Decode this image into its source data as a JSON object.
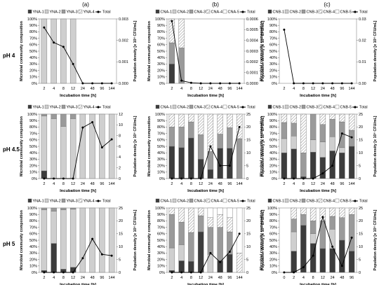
{
  "col_labels": [
    "(a)",
    "(b)",
    "(c)"
  ],
  "row_labels": [
    "pH 4",
    "pH 4.5",
    "pH 5"
  ],
  "palette": {
    "dark": "#3c3c3c",
    "mid": "#9a9a9a",
    "light": "#cfcfcf",
    "white": "#ffffff",
    "hatch": "#b8b8b8",
    "line": "#000000"
  },
  "chart_data": [
    {
      "type": "bar",
      "panel": "a-pH4",
      "categories": [
        "2",
        "4",
        "8",
        "12",
        "24",
        "48",
        "96",
        "144"
      ],
      "legend": [
        "YNA-1",
        "YNA-2",
        "YNA-3",
        "YNA-4",
        "Total"
      ],
      "series": [
        {
          "name": "YNA-1",
          "values": [
            0,
            0,
            0,
            0,
            0,
            0,
            0,
            0
          ]
        },
        {
          "name": "YNA-2",
          "values": [
            100,
            100,
            100,
            100,
            0,
            0,
            0,
            0
          ]
        },
        {
          "name": "YNA-3",
          "values": [
            0,
            0,
            0,
            0,
            0,
            0,
            0,
            0
          ]
        },
        {
          "name": "YNA-4",
          "values": [
            0,
            0,
            0,
            0,
            0,
            0,
            0,
            0
          ]
        }
      ],
      "total": [
        0.0026,
        0.0019,
        0.0017,
        0.0009,
        0,
        0,
        0,
        0
      ],
      "xlabel": "Incubation time [h]",
      "ylabel": "Microbial community composition",
      "y2label": "Population density [x 10⁶ CFU/mL]",
      "yticks": [
        "0%",
        "10%",
        "20%",
        "30%",
        "40%",
        "50%",
        "60%",
        "70%",
        "80%",
        "90%",
        "100%"
      ],
      "y2ticks": [
        "0.000",
        "0.001",
        "0.002",
        "0.003"
      ],
      "y2lim": [
        0,
        0.003
      ]
    },
    {
      "type": "bar",
      "panel": "b-pH4",
      "categories": [
        "2",
        "4",
        "8",
        "12",
        "24",
        "48",
        "96",
        "144"
      ],
      "legend": [
        "CNA-1",
        "CNA-2",
        "CNA-3",
        "CNA-4",
        "CNA-5",
        "Total"
      ],
      "series": [
        {
          "name": "CNA-1",
          "values": [
            30,
            0,
            0,
            0,
            0,
            0,
            0,
            0
          ]
        },
        {
          "name": "CNA-2",
          "values": [
            0,
            0,
            0,
            0,
            0,
            0,
            0,
            0
          ]
        },
        {
          "name": "CNA-3",
          "values": [
            33,
            55,
            0,
            0,
            0,
            0,
            0,
            0
          ]
        },
        {
          "name": "CNA-4",
          "values": [
            37,
            45,
            0,
            0,
            0,
            0,
            0,
            0
          ]
        },
        {
          "name": "CNA-5",
          "values": [
            0,
            0,
            0,
            0,
            0,
            0,
            0,
            0
          ]
        }
      ],
      "total": [
        0.00058,
        2.5e-05,
        5e-06,
        0,
        0,
        0,
        0,
        0
      ],
      "xlabel": "Incubation time [h]",
      "ylabel": "Microbial community composition",
      "y2label": "Population density [x 10⁶ CFU/mL]",
      "yticks": [
        "0%",
        "10%",
        "20%",
        "30%",
        "40%",
        "50%",
        "60%",
        "70%",
        "80%",
        "90%",
        "100%"
      ],
      "y2ticks": [
        "0.0000",
        "0.0001",
        "0.0002",
        "0.0003",
        "0.0004",
        "0.0005",
        "0.0006"
      ],
      "y2lim": [
        0,
        0.0006
      ]
    },
    {
      "type": "bar",
      "panel": "c-pH4",
      "categories": [
        "2",
        "4",
        "8",
        "12",
        "24",
        "48",
        "96",
        "144"
      ],
      "legend": [
        "CNB-1",
        "CNB-2",
        "CNB-3",
        "CNB-4",
        "CNB-5",
        "Total"
      ],
      "series": [
        {
          "name": "CNB-1",
          "values": [
            0,
            0,
            0,
            0,
            0,
            0,
            0,
            0
          ]
        },
        {
          "name": "CNB-2",
          "values": [
            0,
            0,
            0,
            0,
            0,
            0,
            0,
            0
          ]
        },
        {
          "name": "CNB-3",
          "values": [
            0,
            0,
            0,
            0,
            0,
            0,
            0,
            0
          ]
        },
        {
          "name": "CNB-4",
          "values": [
            0,
            0,
            0,
            0,
            0,
            0,
            0,
            0
          ]
        },
        {
          "name": "CNB-5",
          "values": [
            0,
            0,
            0,
            0,
            0,
            0,
            0,
            0
          ]
        }
      ],
      "total": [
        0.025,
        0,
        0,
        0,
        0,
        0,
        0,
        0
      ],
      "xlabel": "Incubation time [h]",
      "ylabel": "Microbial community composition",
      "y2label": "Population density [x 10⁶ CFU/mL]",
      "yticks": [
        "0%",
        "10%",
        "20%",
        "30%",
        "40%",
        "50%",
        "60%",
        "70%",
        "80%",
        "90%",
        "100%"
      ],
      "y2ticks": [
        "0.00",
        "0.01",
        "0.02",
        "0.03"
      ],
      "y2lim": [
        0,
        0.03
      ]
    },
    {
      "type": "bar",
      "panel": "a-pH4.5",
      "categories": [
        "2",
        "4",
        "8",
        "12",
        "24",
        "48",
        "96",
        "144"
      ],
      "legend": [
        "YNA-1",
        "YNA-2",
        "YNA-3",
        "YNA-4",
        "Total"
      ],
      "series": [
        {
          "name": "YNA-1",
          "values": [
            12,
            0,
            0,
            0,
            0,
            0,
            0,
            0
          ]
        },
        {
          "name": "YNA-2",
          "values": [
            85,
            93,
            81,
            93,
            100,
            100,
            100,
            100
          ]
        },
        {
          "name": "YNA-3",
          "values": [
            3,
            7,
            19,
            7,
            0,
            0,
            0,
            0
          ]
        },
        {
          "name": "YNA-4",
          "values": [
            0,
            0,
            0,
            0,
            0,
            0,
            0,
            0
          ]
        }
      ],
      "total": [
        0,
        0,
        0,
        0,
        9.5,
        10.5,
        5.8,
        7.3
      ],
      "xlabel": "Incubation time [h]",
      "ylabel": "Microbial community composition",
      "y2label": "Population density [x 10⁶ CFU/mL]",
      "yticks": [
        "0%",
        "10%",
        "20%",
        "30%",
        "40%",
        "50%",
        "60%",
        "70%",
        "80%",
        "90%",
        "100%"
      ],
      "y2ticks": [
        "0",
        "2",
        "4",
        "6",
        "8",
        "10",
        "12"
      ],
      "y2lim": [
        0,
        12
      ]
    },
    {
      "type": "bar",
      "panel": "b-pH4.5",
      "categories": [
        "2",
        "4",
        "8",
        "12",
        "24",
        "48",
        "96",
        "144"
      ],
      "legend": [
        "CNA-1",
        "CNA-2",
        "CNA-3",
        "CNA-4",
        "CNA-5",
        "Total"
      ],
      "series": [
        {
          "name": "CNA-1",
          "values": [
            50,
            48,
            63,
            30,
            14,
            47,
            47,
            0
          ]
        },
        {
          "name": "CNA-2",
          "values": [
            0,
            0,
            0,
            0,
            0,
            0,
            0,
            0
          ]
        },
        {
          "name": "CNA-3",
          "values": [
            30,
            32,
            25,
            38,
            28,
            22,
            32,
            62
          ]
        },
        {
          "name": "CNA-4",
          "values": [
            20,
            20,
            12,
            32,
            58,
            31,
            21,
            38
          ]
        },
        {
          "name": "CNA-5",
          "values": [
            0,
            0,
            0,
            0,
            0,
            0,
            0,
            0
          ]
        }
      ],
      "total": [
        0,
        0,
        0,
        0,
        12.5,
        5,
        5,
        20
      ],
      "xlabel": "Incubation time [h]",
      "ylabel": "Microbial community composition",
      "y2label": "Population density [x 10⁶ CFU/mL]",
      "yticks": [
        "0%",
        "10%",
        "20%",
        "30%",
        "40%",
        "50%",
        "60%",
        "70%",
        "80%",
        "90%",
        "100%"
      ],
      "y2ticks": [
        "0",
        "5",
        "10",
        "15",
        "20",
        "25"
      ],
      "y2lim": [
        0,
        25
      ]
    },
    {
      "type": "bar",
      "panel": "c-pH4.5",
      "categories": [
        "2",
        "4",
        "8",
        "12",
        "24",
        "48",
        "96",
        "144"
      ],
      "legend": [
        "CNB-1",
        "CNB-2",
        "CNB-3",
        "CNB-4",
        "CNB-5",
        "Total"
      ],
      "series": [
        {
          "name": "CNB-1",
          "values": [
            40,
            46,
            3,
            41,
            33,
            43,
            40,
            50
          ]
        },
        {
          "name": "CNB-2",
          "values": [
            22,
            20,
            0,
            19,
            24,
            22,
            8,
            0
          ]
        },
        {
          "name": "CNB-3",
          "values": [
            25,
            20,
            37,
            40,
            27,
            27,
            40,
            25
          ]
        },
        {
          "name": "CNB-4",
          "values": [
            13,
            14,
            60,
            0,
            16,
            8,
            12,
            25
          ]
        },
        {
          "name": "CNB-5",
          "values": [
            0,
            0,
            0,
            0,
            0,
            0,
            0,
            0
          ]
        }
      ],
      "total": [
        0,
        0,
        0,
        0,
        2,
        5,
        17.5,
        16
      ],
      "xlabel": "Incubation time [h]",
      "ylabel": "Microbial community composition",
      "y2label": "Population density [x 10⁶ CFU/mL]",
      "yticks": [
        "0%",
        "10%",
        "20%",
        "30%",
        "40%",
        "50%",
        "60%",
        "70%",
        "80%",
        "90%",
        "100%"
      ],
      "y2ticks": [
        "0",
        "5",
        "10",
        "15",
        "20",
        "25"
      ],
      "y2lim": [
        0,
        25
      ]
    },
    {
      "type": "bar",
      "panel": "a-pH5",
      "categories": [
        "2",
        "4",
        "8",
        "12",
        "24",
        "48",
        "96",
        "144"
      ],
      "legend": [
        "YNA-1",
        "YNA-2",
        "YNA-3",
        "YNA-4",
        "Total"
      ],
      "series": [
        {
          "name": "YNA-1",
          "values": [
            3,
            45,
            5,
            8,
            0,
            0,
            0,
            0
          ]
        },
        {
          "name": "YNA-2",
          "values": [
            94,
            50,
            92,
            90,
            100,
            100,
            100,
            100
          ]
        },
        {
          "name": "YNA-3",
          "values": [
            3,
            5,
            3,
            2,
            0,
            0,
            0,
            0
          ]
        },
        {
          "name": "YNA-4",
          "values": [
            0,
            0,
            0,
            0,
            0,
            0,
            0,
            0
          ]
        }
      ],
      "total": [
        0,
        0,
        0,
        0,
        5.5,
        13,
        7,
        6.5
      ],
      "xlabel": "Incubation time [h]",
      "ylabel": "Microbial community composition",
      "y2label": "Population density [x 10⁶ CFU/mL]",
      "yticks": [
        "0%",
        "10%",
        "20%",
        "30%",
        "40%",
        "50%",
        "60%",
        "70%",
        "80%",
        "90%",
        "100%"
      ],
      "y2ticks": [
        "0",
        "5",
        "10",
        "15",
        "20",
        "25"
      ],
      "y2lim": [
        0,
        25
      ]
    },
    {
      "type": "bar",
      "panel": "b-pH5",
      "categories": [
        "2",
        "4",
        "8",
        "12",
        "24",
        "48",
        "96",
        "144"
      ],
      "legend": [
        "CNA-1",
        "CNA-2",
        "CNA-3",
        "CNA-4",
        "CNA-5",
        "Total"
      ],
      "series": [
        {
          "name": "CNA-1",
          "values": [
            3,
            18,
            17,
            63,
            0,
            18,
            28,
            0
          ]
        },
        {
          "name": "CNA-2",
          "values": [
            35,
            25,
            0,
            0,
            28,
            0,
            0,
            0
          ]
        },
        {
          "name": "CNA-3",
          "values": [
            52,
            35,
            45,
            25,
            42,
            52,
            35,
            0
          ]
        },
        {
          "name": "CNA-4",
          "values": [
            10,
            22,
            38,
            12,
            15,
            20,
            22,
            30
          ]
        },
        {
          "name": "CNA-5",
          "values": [
            0,
            0,
            0,
            0,
            15,
            10,
            15,
            70
          ]
        }
      ],
      "total": [
        0,
        0,
        0,
        0,
        7.5,
        4,
        8,
        15
      ],
      "xlabel": "Incubation time [h]",
      "ylabel": "Microbial community composition",
      "y2label": "Population density [x 10⁶ CFU/mL]",
      "yticks": [
        "0%",
        "10%",
        "20%",
        "30%",
        "40%",
        "50%",
        "60%",
        "70%",
        "80%",
        "90%",
        "100%"
      ],
      "y2ticks": [
        "0",
        "5",
        "10",
        "15",
        "20",
        "25"
      ],
      "y2lim": [
        0,
        25
      ]
    },
    {
      "type": "bar",
      "panel": "c-pH5",
      "categories": [
        "0",
        "2",
        "4",
        "8",
        "12",
        "24",
        "48",
        "96"
      ],
      "legend": [
        "CNB-1",
        "CNB-2",
        "CNB-3",
        "CNB-4",
        "CNB-5",
        "Total"
      ],
      "series": [
        {
          "name": "CNB-1",
          "values": [
            0,
            33,
            73,
            45,
            37,
            37,
            50,
            33
          ]
        },
        {
          "name": "CNB-2",
          "values": [
            0,
            30,
            0,
            15,
            0,
            30,
            0,
            0
          ]
        },
        {
          "name": "CNB-3",
          "values": [
            0,
            20,
            17,
            20,
            43,
            20,
            35,
            57
          ]
        },
        {
          "name": "CNB-4",
          "values": [
            0,
            17,
            10,
            20,
            20,
            13,
            15,
            10
          ]
        },
        {
          "name": "CNB-5",
          "values": [
            0,
            0,
            0,
            0,
            0,
            0,
            0,
            0
          ]
        }
      ],
      "total": [
        0,
        0,
        2,
        6.5,
        21.5,
        10,
        2.5,
        13.5
      ],
      "xlabel": "Incubation time [h]",
      "ylabel": "Microbial community composition",
      "y2label": "Population density [x 10⁶ CFU/mL]",
      "yticks": [
        "0%",
        "10%",
        "20%",
        "30%",
        "40%",
        "50%",
        "60%",
        "70%",
        "80%",
        "90%",
        "100%"
      ],
      "y2ticks": [
        "0",
        "5",
        "10",
        "15",
        "20",
        "25"
      ],
      "y2lim": [
        0,
        25
      ]
    }
  ]
}
